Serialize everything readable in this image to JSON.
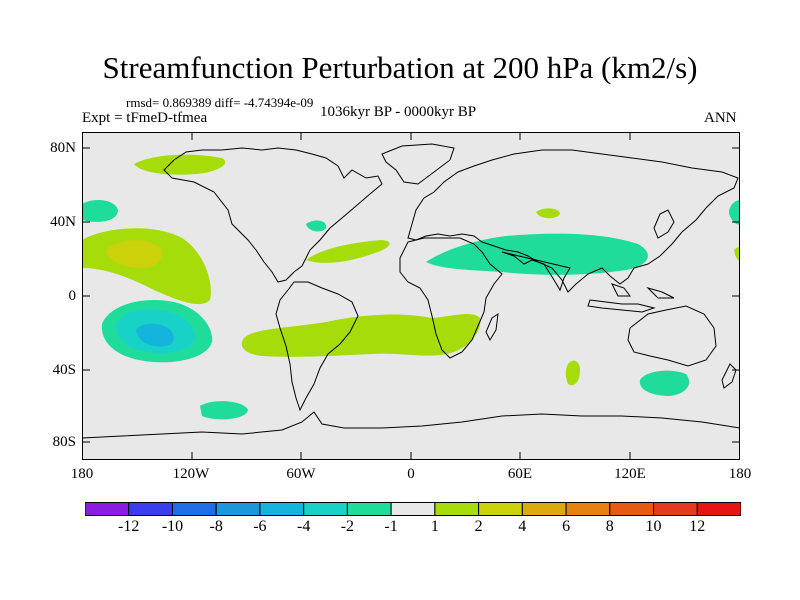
{
  "title": "Streamfunction Perturbation at 200 hPa (km2/s)",
  "stats": "rmsd= 0.869389 diff= -4.74394e-09",
  "experiment": "Expt = tFmeD-tfmea",
  "period": "1036kyr BP - 0000kyr BP",
  "season": "ANN",
  "lat_labels": [
    "80N",
    "40N",
    "0",
    "40S",
    "80S"
  ],
  "lon_labels": [
    "180",
    "120W",
    "60W",
    "0",
    "60E",
    "120E",
    "180"
  ],
  "colorbar": {
    "labels": [
      "-12",
      "-10",
      "-8",
      "-6",
      "-4",
      "-2",
      "-1",
      "1",
      "2",
      "4",
      "6",
      "8",
      "10",
      "12"
    ],
    "colors": [
      "#8a1ee0",
      "#3c3cf0",
      "#1e6ee6",
      "#1e96dc",
      "#14b4dc",
      "#18d2c8",
      "#20dc9a",
      "#e8e8e8",
      "#a6dc0a",
      "#cbd20a",
      "#dcaa0a",
      "#e68214",
      "#e65a14",
      "#e63a1e",
      "#e61414"
    ]
  },
  "colors": {
    "ocean_background": "#e8e8e8",
    "coastline": "#000000",
    "level_1_2": "#a6dc0a",
    "level_2_4": "#cbd20a",
    "level_m1_m2": "#20dc9a",
    "level_m2_m4": "#18d2c8",
    "level_m4_m6": "#14b4dc"
  },
  "anomalies": [
    {
      "name": "north-pacific-positive",
      "value": "1 to 2"
    },
    {
      "name": "tropical-east-pacific-positive",
      "value": "2 to 4"
    },
    {
      "name": "south-pacific-negative",
      "value": "-4 to -6"
    },
    {
      "name": "north-atlantic-positive",
      "value": "1 to 2"
    },
    {
      "name": "south-atlantic-indian-positive",
      "value": "1 to 2"
    },
    {
      "name": "asian-negative-band",
      "value": "-1 to -2"
    },
    {
      "name": "south-indian-negative",
      "value": "-1 to -2"
    },
    {
      "name": "southern-ocean-negative",
      "value": "-1 to -2"
    }
  ]
}
